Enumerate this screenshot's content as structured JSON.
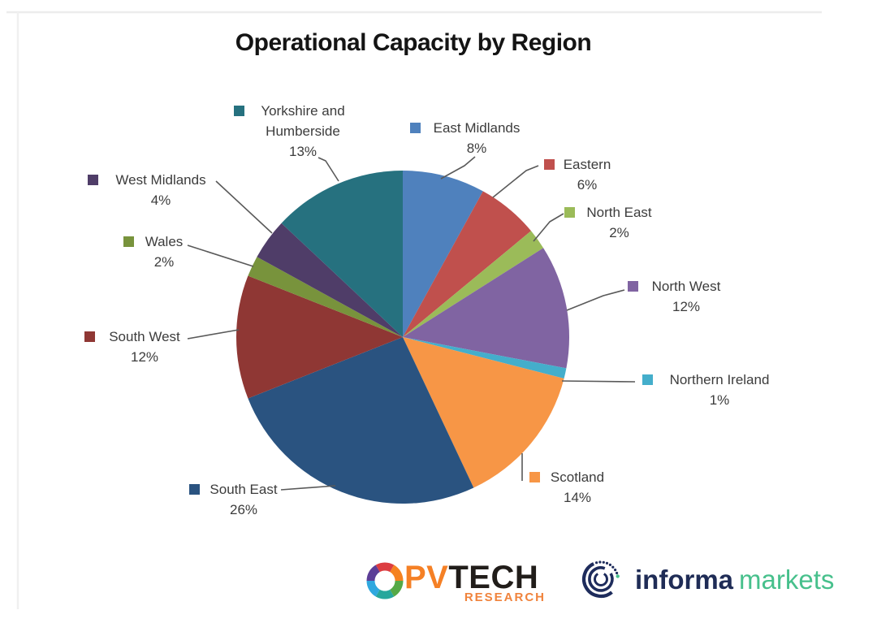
{
  "title": "Operational Capacity by Region",
  "chart_data": {
    "type": "pie",
    "title": "Operational Capacity by Region",
    "unit": "percent",
    "start_angle_deg": 0,
    "direction": "clockwise",
    "legend_position": "callout-labels-around-pie",
    "slices": [
      {
        "label": "East Midlands",
        "value": 8,
        "pct_label": "8%",
        "color": "#4F81BD"
      },
      {
        "label": "Eastern",
        "value": 6,
        "pct_label": "6%",
        "color": "#C0504D"
      },
      {
        "label": "North East",
        "value": 2,
        "pct_label": "2%",
        "color": "#9BBB59"
      },
      {
        "label": "North West",
        "value": 12,
        "pct_label": "12%",
        "color": "#8064A2"
      },
      {
        "label": "Northern Ireland",
        "value": 1,
        "pct_label": "1%",
        "color": "#44AECB"
      },
      {
        "label": "Scotland",
        "value": 14,
        "pct_label": "14%",
        "color": "#F79646"
      },
      {
        "label": "South East",
        "value": 26,
        "pct_label": "26%",
        "color": "#2A5380"
      },
      {
        "label": "South West",
        "value": 12,
        "pct_label": "12%",
        "color": "#8F3734"
      },
      {
        "label": "Wales",
        "value": 2,
        "pct_label": "2%",
        "color": "#78933C"
      },
      {
        "label": "West Midlands",
        "value": 4,
        "pct_label": "4%",
        "color": "#4F3D68"
      },
      {
        "label": "Yorkshire and Humberside",
        "value": 13,
        "pct_label": "13%",
        "color": "#26717F"
      }
    ]
  },
  "footer": {
    "pvtech": {
      "name": "PV",
      "name2": "TECH",
      "sub": "RESEARCH"
    },
    "informa": {
      "name": "informa",
      "name2": "markets"
    }
  }
}
